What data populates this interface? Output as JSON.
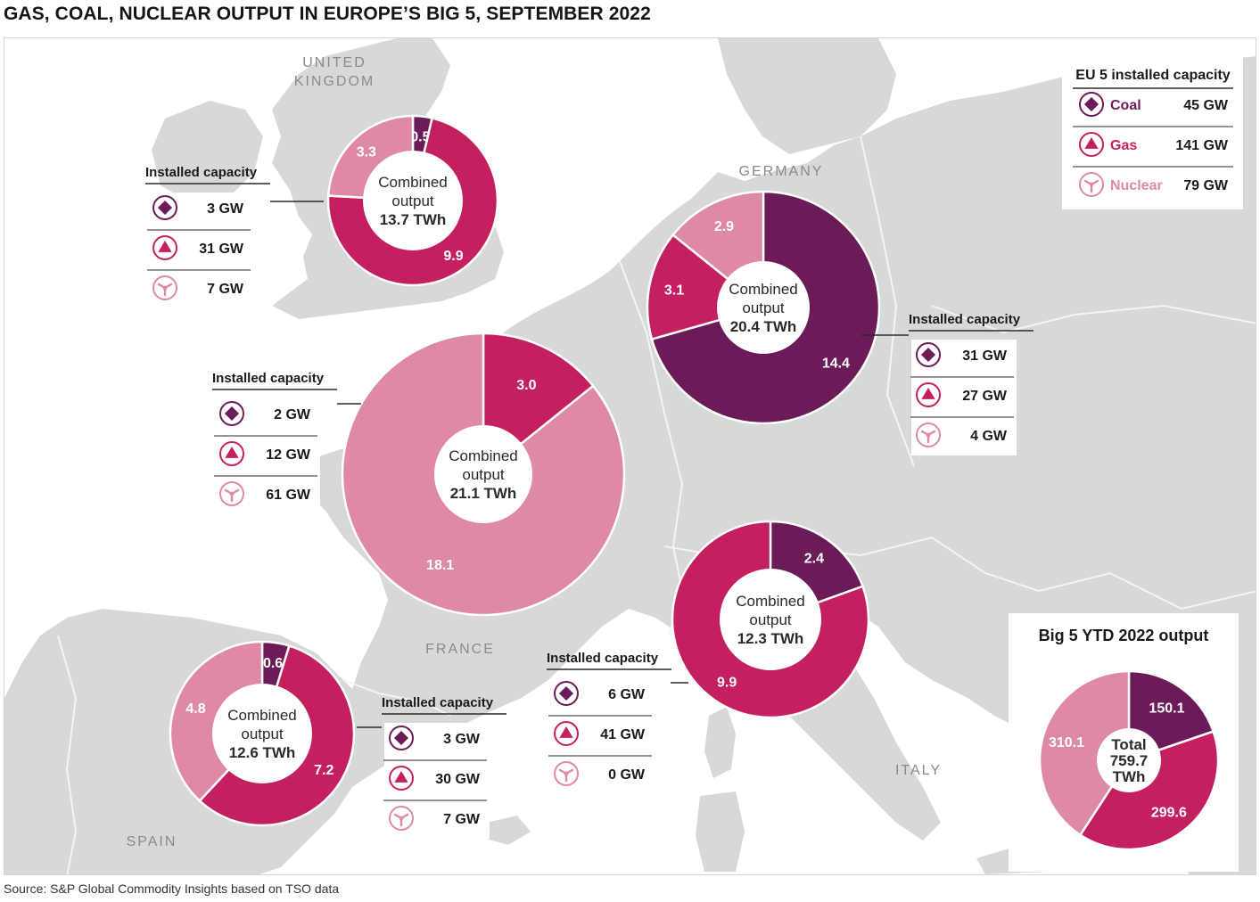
{
  "title": "GAS, COAL, NUCLEAR OUTPUT IN EUROPE’S BIG 5, SEPTEMBER 2022",
  "source": "Source: S&P Global Commodity Insights based on TSO data",
  "colors": {
    "coal": "#6b1b58",
    "gas": "#c4205f",
    "nuclear": "#df8aa4",
    "land": "#d8d8d8",
    "sea": "#ffffff",
    "border": "#f4f4f4"
  },
  "icons": {
    "coal": "diamond-in-circle-icon",
    "gas": "triangle-in-circle-icon",
    "nuclear": "nuclear-trefoil-icon"
  },
  "legend": {
    "title": "EU 5 installed capacity",
    "items": [
      {
        "key": "coal",
        "label": "Coal",
        "value": "45 GW"
      },
      {
        "key": "gas",
        "label": "Gas",
        "value": "141 GW"
      },
      {
        "key": "nuclear",
        "label": "Nuclear",
        "value": "79 GW"
      }
    ]
  },
  "installed_label": "Installed capacity",
  "country_labels": [
    {
      "lines": [
        "UNITED",
        "KINGDOM"
      ]
    },
    {
      "lines": [
        "GERMANY"
      ]
    },
    {
      "lines": [
        "FRANCE"
      ]
    },
    {
      "lines": [
        "SPAIN"
      ]
    },
    {
      "lines": [
        "ITALY"
      ]
    }
  ],
  "chart_data": [
    {
      "type": "pie",
      "name": "United Kingdom",
      "unit": "TWh",
      "center_lines": [
        "Combined",
        "output",
        "13.7 TWh"
      ],
      "slices": [
        {
          "key": "coal",
          "value": 0.5,
          "label": "0.5"
        },
        {
          "key": "gas",
          "value": 9.9,
          "label": "9.9"
        },
        {
          "key": "nuclear",
          "value": 3.3,
          "label": "3.3"
        }
      ],
      "capacity": [
        {
          "key": "coal",
          "value": "3 GW"
        },
        {
          "key": "gas",
          "value": "31 GW"
        },
        {
          "key": "nuclear",
          "value": "7 GW"
        }
      ]
    },
    {
      "type": "pie",
      "name": "Germany",
      "unit": "TWh",
      "center_lines": [
        "Combined",
        "output",
        "20.4 TWh"
      ],
      "slices": [
        {
          "key": "coal",
          "value": 14.4,
          "label": "14.4"
        },
        {
          "key": "gas",
          "value": 3.1,
          "label": "3.1"
        },
        {
          "key": "nuclear",
          "value": 2.9,
          "label": "2.9"
        }
      ],
      "capacity": [
        {
          "key": "coal",
          "value": "31 GW"
        },
        {
          "key": "gas",
          "value": "27 GW"
        },
        {
          "key": "nuclear",
          "value": "4 GW"
        }
      ]
    },
    {
      "type": "pie",
      "name": "France",
      "unit": "TWh",
      "center_lines": [
        "Combined",
        "output",
        "21.1 TWh"
      ],
      "slices": [
        {
          "key": "gas",
          "value": 3.0,
          "label": "3.0"
        },
        {
          "key": "nuclear",
          "value": 18.1,
          "label": "18.1"
        }
      ],
      "capacity": [
        {
          "key": "coal",
          "value": "2 GW"
        },
        {
          "key": "gas",
          "value": "12 GW"
        },
        {
          "key": "nuclear",
          "value": "61 GW"
        }
      ]
    },
    {
      "type": "pie",
      "name": "Spain",
      "unit": "TWh",
      "center_lines": [
        "Combined",
        "output",
        "12.6 TWh"
      ],
      "slices": [
        {
          "key": "coal",
          "value": 0.6,
          "label": "0.6"
        },
        {
          "key": "gas",
          "value": 7.2,
          "label": "7.2"
        },
        {
          "key": "nuclear",
          "value": 4.8,
          "label": "4.8"
        }
      ],
      "capacity": [
        {
          "key": "coal",
          "value": "3 GW"
        },
        {
          "key": "gas",
          "value": "30 GW"
        },
        {
          "key": "nuclear",
          "value": "7 GW"
        }
      ]
    },
    {
      "type": "pie",
      "name": "Italy",
      "unit": "TWh",
      "center_lines": [
        "Combined",
        "output",
        "12.3 TWh"
      ],
      "slices": [
        {
          "key": "coal",
          "value": 2.4,
          "label": "2.4"
        },
        {
          "key": "gas",
          "value": 9.9,
          "label": "9.9"
        }
      ],
      "capacity": [
        {
          "key": "coal",
          "value": "6 GW"
        },
        {
          "key": "gas",
          "value": "41 GW"
        },
        {
          "key": "nuclear",
          "value": "0 GW"
        }
      ]
    },
    {
      "type": "pie",
      "name": "Big 5 YTD 2022 output",
      "title": "Big 5 YTD 2022 output",
      "center_lines": [
        "Total",
        "759.7",
        "TWh"
      ],
      "slices": [
        {
          "key": "coal",
          "value": 150.1,
          "label": "150.1"
        },
        {
          "key": "gas",
          "value": 299.6,
          "label": "299.6"
        },
        {
          "key": "nuclear",
          "value": 310.1,
          "label": "310.1"
        }
      ]
    }
  ]
}
